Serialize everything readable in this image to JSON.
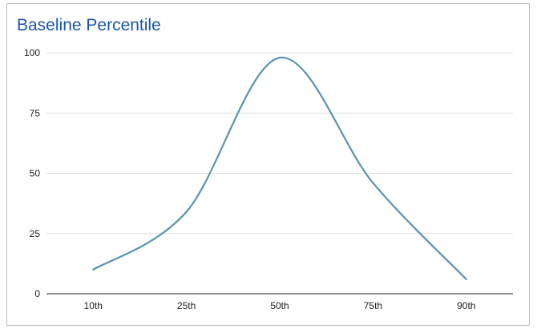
{
  "chart_data": {
    "type": "line",
    "title": "Baseline Percentile",
    "xlabel": "",
    "ylabel": "",
    "categories": [
      "10th",
      "25th",
      "50th",
      "75th",
      "90th"
    ],
    "series": [
      {
        "name": "Baseline Percentile",
        "values": [
          10,
          34,
          98,
          46,
          6
        ],
        "color": "#5a93b0",
        "smooth": true
      }
    ],
    "ylim": [
      0,
      100
    ],
    "yticks": [
      0,
      25,
      50,
      75,
      100
    ],
    "grid": true,
    "legend": "none"
  },
  "colors": {
    "title": "#1a56b0",
    "line": "#5a93b0",
    "grid": "#e0e0e0",
    "axis": "#555555",
    "border": "#bdbdbd"
  }
}
